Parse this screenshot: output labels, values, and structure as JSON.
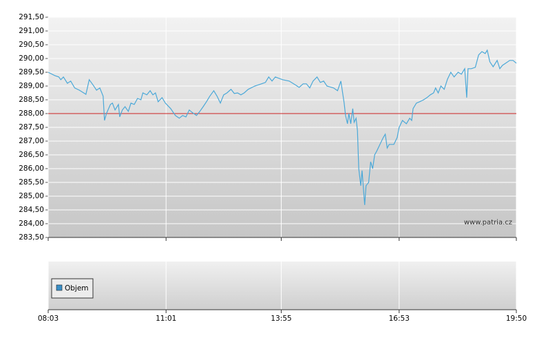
{
  "chart_data": [
    {
      "type": "line",
      "color": "#4aa8d8",
      "grid": true,
      "reference_line": 288,
      "reference_color": "#cc2222",
      "watermark": "www.patria.cz",
      "xlim": [
        483,
        1190
      ],
      "xticks": [
        {
          "value": 483,
          "label": "08:03"
        },
        {
          "value": 661,
          "label": "11:01"
        },
        {
          "value": 835,
          "label": "13:55"
        },
        {
          "value": 1013,
          "label": "16:53"
        },
        {
          "value": 1190,
          "label": "19:50"
        }
      ],
      "ylim": [
        283.5,
        291.5
      ],
      "yticks": [
        {
          "value": 283.5,
          "label": "283,50"
        },
        {
          "value": 284,
          "label": "284,00"
        },
        {
          "value": 284.5,
          "label": "284,50"
        },
        {
          "value": 285,
          "label": "285,00"
        },
        {
          "value": 285.5,
          "label": "285,50"
        },
        {
          "value": 286,
          "label": "286,00"
        },
        {
          "value": 286.5,
          "label": "286,50"
        },
        {
          "value": 287,
          "label": "287,00"
        },
        {
          "value": 287.5,
          "label": "287,50"
        },
        {
          "value": 288,
          "label": "288,00"
        },
        {
          "value": 288.5,
          "label": "288,50"
        },
        {
          "value": 289,
          "label": "289,00"
        },
        {
          "value": 289.5,
          "label": "289,50"
        },
        {
          "value": 290,
          "label": "290,00"
        },
        {
          "value": 290.5,
          "label": "290,50"
        },
        {
          "value": 291,
          "label": "291,00"
        },
        {
          "value": 291.5,
          "label": "291,50"
        }
      ],
      "x": [
        483,
        493,
        499,
        502,
        506,
        512,
        517,
        523,
        530,
        540,
        545,
        551,
        556,
        561,
        566,
        568,
        571,
        577,
        580,
        584,
        589,
        591,
        595,
        599,
        604,
        608,
        613,
        618,
        623,
        626,
        632,
        637,
        641,
        645,
        649,
        655,
        660,
        668,
        675,
        681,
        686,
        691,
        696,
        701,
        707,
        712,
        717,
        722,
        727,
        733,
        738,
        743,
        748,
        753,
        759,
        764,
        769,
        774,
        779,
        785,
        795,
        805,
        811,
        816,
        821,
        826,
        837,
        847,
        857,
        862,
        868,
        873,
        878,
        883,
        889,
        894,
        899,
        904,
        914,
        920,
        925,
        930,
        932,
        935,
        937,
        940,
        943,
        945,
        948,
        950,
        952,
        955,
        957,
        961,
        963,
        967,
        970,
        973,
        976,
        979,
        984,
        989,
        992,
        995,
        998,
        1001,
        1005,
        1010,
        1013,
        1018,
        1024,
        1029,
        1032,
        1034,
        1039,
        1044,
        1050,
        1055,
        1060,
        1065,
        1068,
        1072,
        1076,
        1081,
        1086,
        1091,
        1096,
        1102,
        1107,
        1112,
        1115,
        1117,
        1122,
        1128,
        1133,
        1138,
        1143,
        1146,
        1150,
        1155,
        1161,
        1165,
        1169,
        1174,
        1180,
        1185,
        1190
      ],
      "values": [
        289.5,
        289.38,
        289.33,
        289.23,
        289.33,
        289.1,
        289.18,
        288.93,
        288.85,
        288.7,
        289.23,
        289.03,
        288.85,
        288.93,
        288.63,
        287.75,
        288.0,
        288.33,
        288.38,
        288.13,
        288.33,
        287.88,
        288.13,
        288.25,
        288.08,
        288.38,
        288.33,
        288.55,
        288.5,
        288.75,
        288.68,
        288.83,
        288.68,
        288.75,
        288.43,
        288.58,
        288.38,
        288.18,
        287.93,
        287.83,
        287.93,
        287.88,
        288.13,
        288.03,
        287.93,
        288.08,
        288.25,
        288.43,
        288.63,
        288.83,
        288.63,
        288.38,
        288.68,
        288.75,
        288.88,
        288.73,
        288.75,
        288.68,
        288.75,
        288.88,
        289.0,
        289.08,
        289.13,
        289.33,
        289.18,
        289.33,
        289.23,
        289.18,
        289.03,
        288.95,
        289.08,
        289.08,
        288.93,
        289.18,
        289.33,
        289.13,
        289.18,
        289.0,
        288.93,
        288.83,
        289.18,
        288.38,
        287.93,
        287.63,
        288.0,
        287.63,
        288.18,
        287.68,
        287.83,
        287.38,
        286.0,
        285.38,
        285.93,
        284.68,
        285.38,
        285.5,
        286.25,
        286.0,
        286.5,
        286.63,
        286.88,
        287.13,
        287.25,
        286.75,
        286.88,
        286.88,
        286.88,
        287.13,
        287.5,
        287.75,
        287.63,
        287.83,
        287.75,
        288.18,
        288.38,
        288.43,
        288.5,
        288.58,
        288.68,
        288.75,
        288.93,
        288.75,
        289.0,
        288.88,
        289.25,
        289.5,
        289.33,
        289.5,
        289.43,
        289.63,
        288.58,
        289.63,
        289.63,
        289.68,
        290.13,
        290.25,
        290.18,
        290.3,
        289.88,
        289.7,
        289.93,
        289.63,
        289.75,
        289.83,
        289.93,
        289.93,
        289.83
      ]
    },
    {
      "type": "bar",
      "series": [
        {
          "name": "Objem",
          "color": "#3a8fc7",
          "values": []
        }
      ]
    }
  ]
}
